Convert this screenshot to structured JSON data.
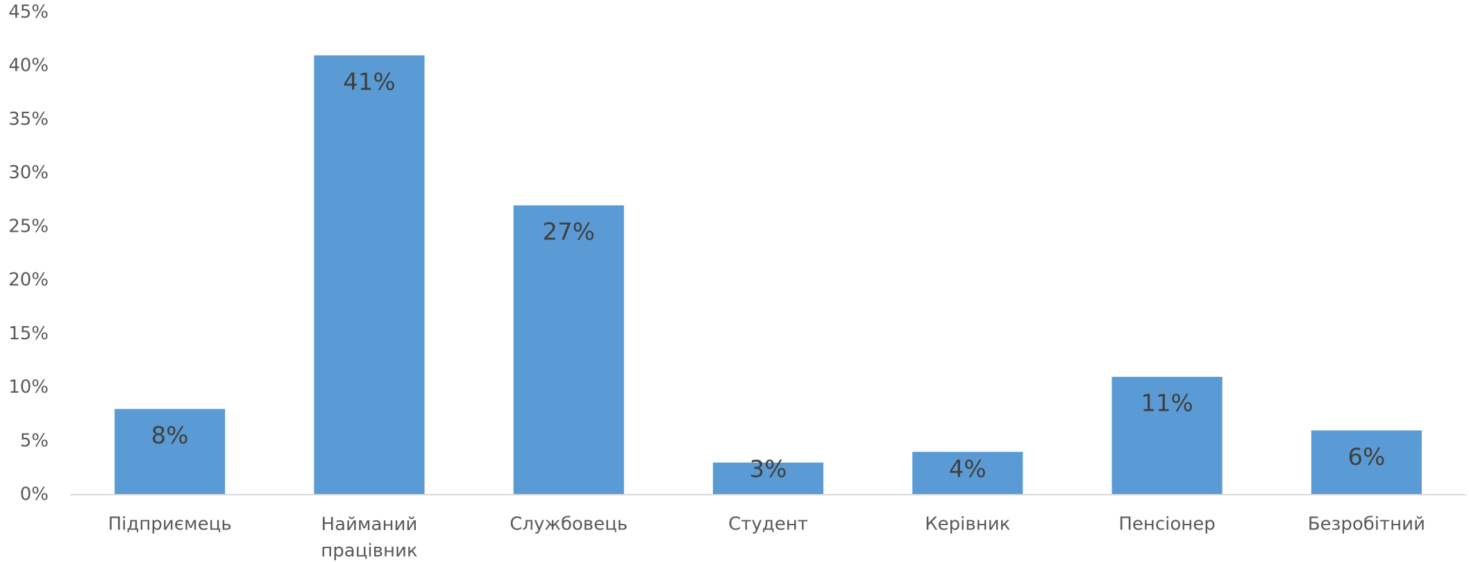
{
  "chart_data": {
    "type": "bar",
    "categories": [
      "Підприємець",
      "Найманий працівник",
      "Службовець",
      "Студент",
      "Керівник",
      "Пенсіонер",
      "Безробітний"
    ],
    "values": [
      8,
      41,
      27,
      3,
      4,
      11,
      6
    ],
    "value_labels": [
      "8%",
      "41%",
      "27%",
      "3%",
      "4%",
      "11%",
      "6%"
    ],
    "color": "#5b9bd5",
    "ylim": [
      0,
      45
    ],
    "yticks": [
      {
        "value": 0,
        "label": "0%"
      },
      {
        "value": 5,
        "label": "5%"
      },
      {
        "value": 10,
        "label": "10%"
      },
      {
        "value": 15,
        "label": "15%"
      },
      {
        "value": 20,
        "label": "20%"
      },
      {
        "value": 25,
        "label": "25%"
      },
      {
        "value": 30,
        "label": "30%"
      },
      {
        "value": 35,
        "label": "35%"
      },
      {
        "value": 40,
        "label": "40%"
      },
      {
        "value": 45,
        "label": "45%"
      }
    ],
    "grid": false
  }
}
